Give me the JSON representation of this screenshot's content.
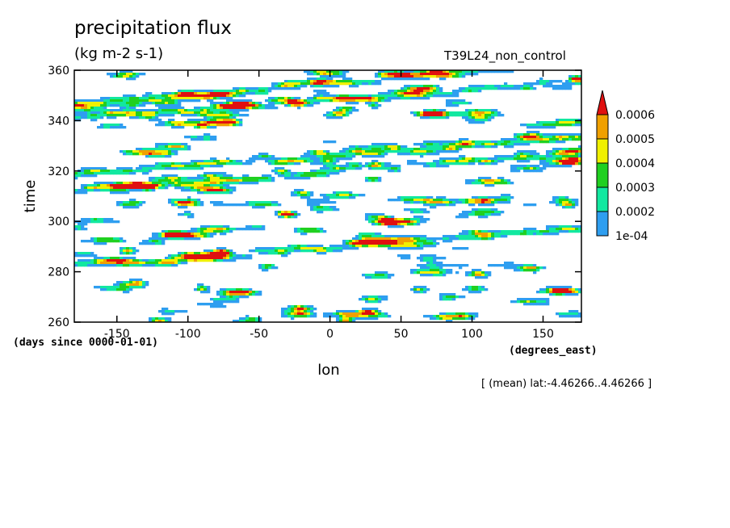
{
  "chart_data": {
    "type": "heatmap",
    "title": "precipitation flux",
    "units": "(kg m-2 s-1)",
    "run_label": "T39L24_non_control",
    "xlabel": "lon",
    "x_units": "(degrees_east)",
    "ylabel": "time",
    "y_units": "(days since 0000-01-01)",
    "xlim": [
      -180,
      177
    ],
    "ylim": [
      260,
      360
    ],
    "x_ticks": [
      -150,
      -100,
      -50,
      0,
      50,
      100,
      150
    ],
    "x_tick_labels": [
      "-150",
      "-100",
      "-50",
      "0",
      "50",
      "100",
      "150"
    ],
    "y_ticks": [
      260,
      280,
      300,
      320,
      340,
      360
    ],
    "y_tick_labels": [
      "260",
      "280",
      "300",
      "320",
      "340",
      "360"
    ],
    "colorbar": {
      "levels": [
        0.0001,
        0.0002,
        0.0003,
        0.0004,
        0.0005,
        0.0006
      ],
      "labels": [
        "1e-04",
        "0.0002",
        "0.0003",
        "0.0004",
        "0.0005",
        "0.0006"
      ],
      "colors": [
        "#ffffff",
        "#2e9ef0",
        "#12e8a0",
        "#20d020",
        "#f0f000",
        "#f0a000",
        "#e01010"
      ]
    },
    "annotation": "[ (mean) lat:-4.46266..4.46266 ]"
  }
}
